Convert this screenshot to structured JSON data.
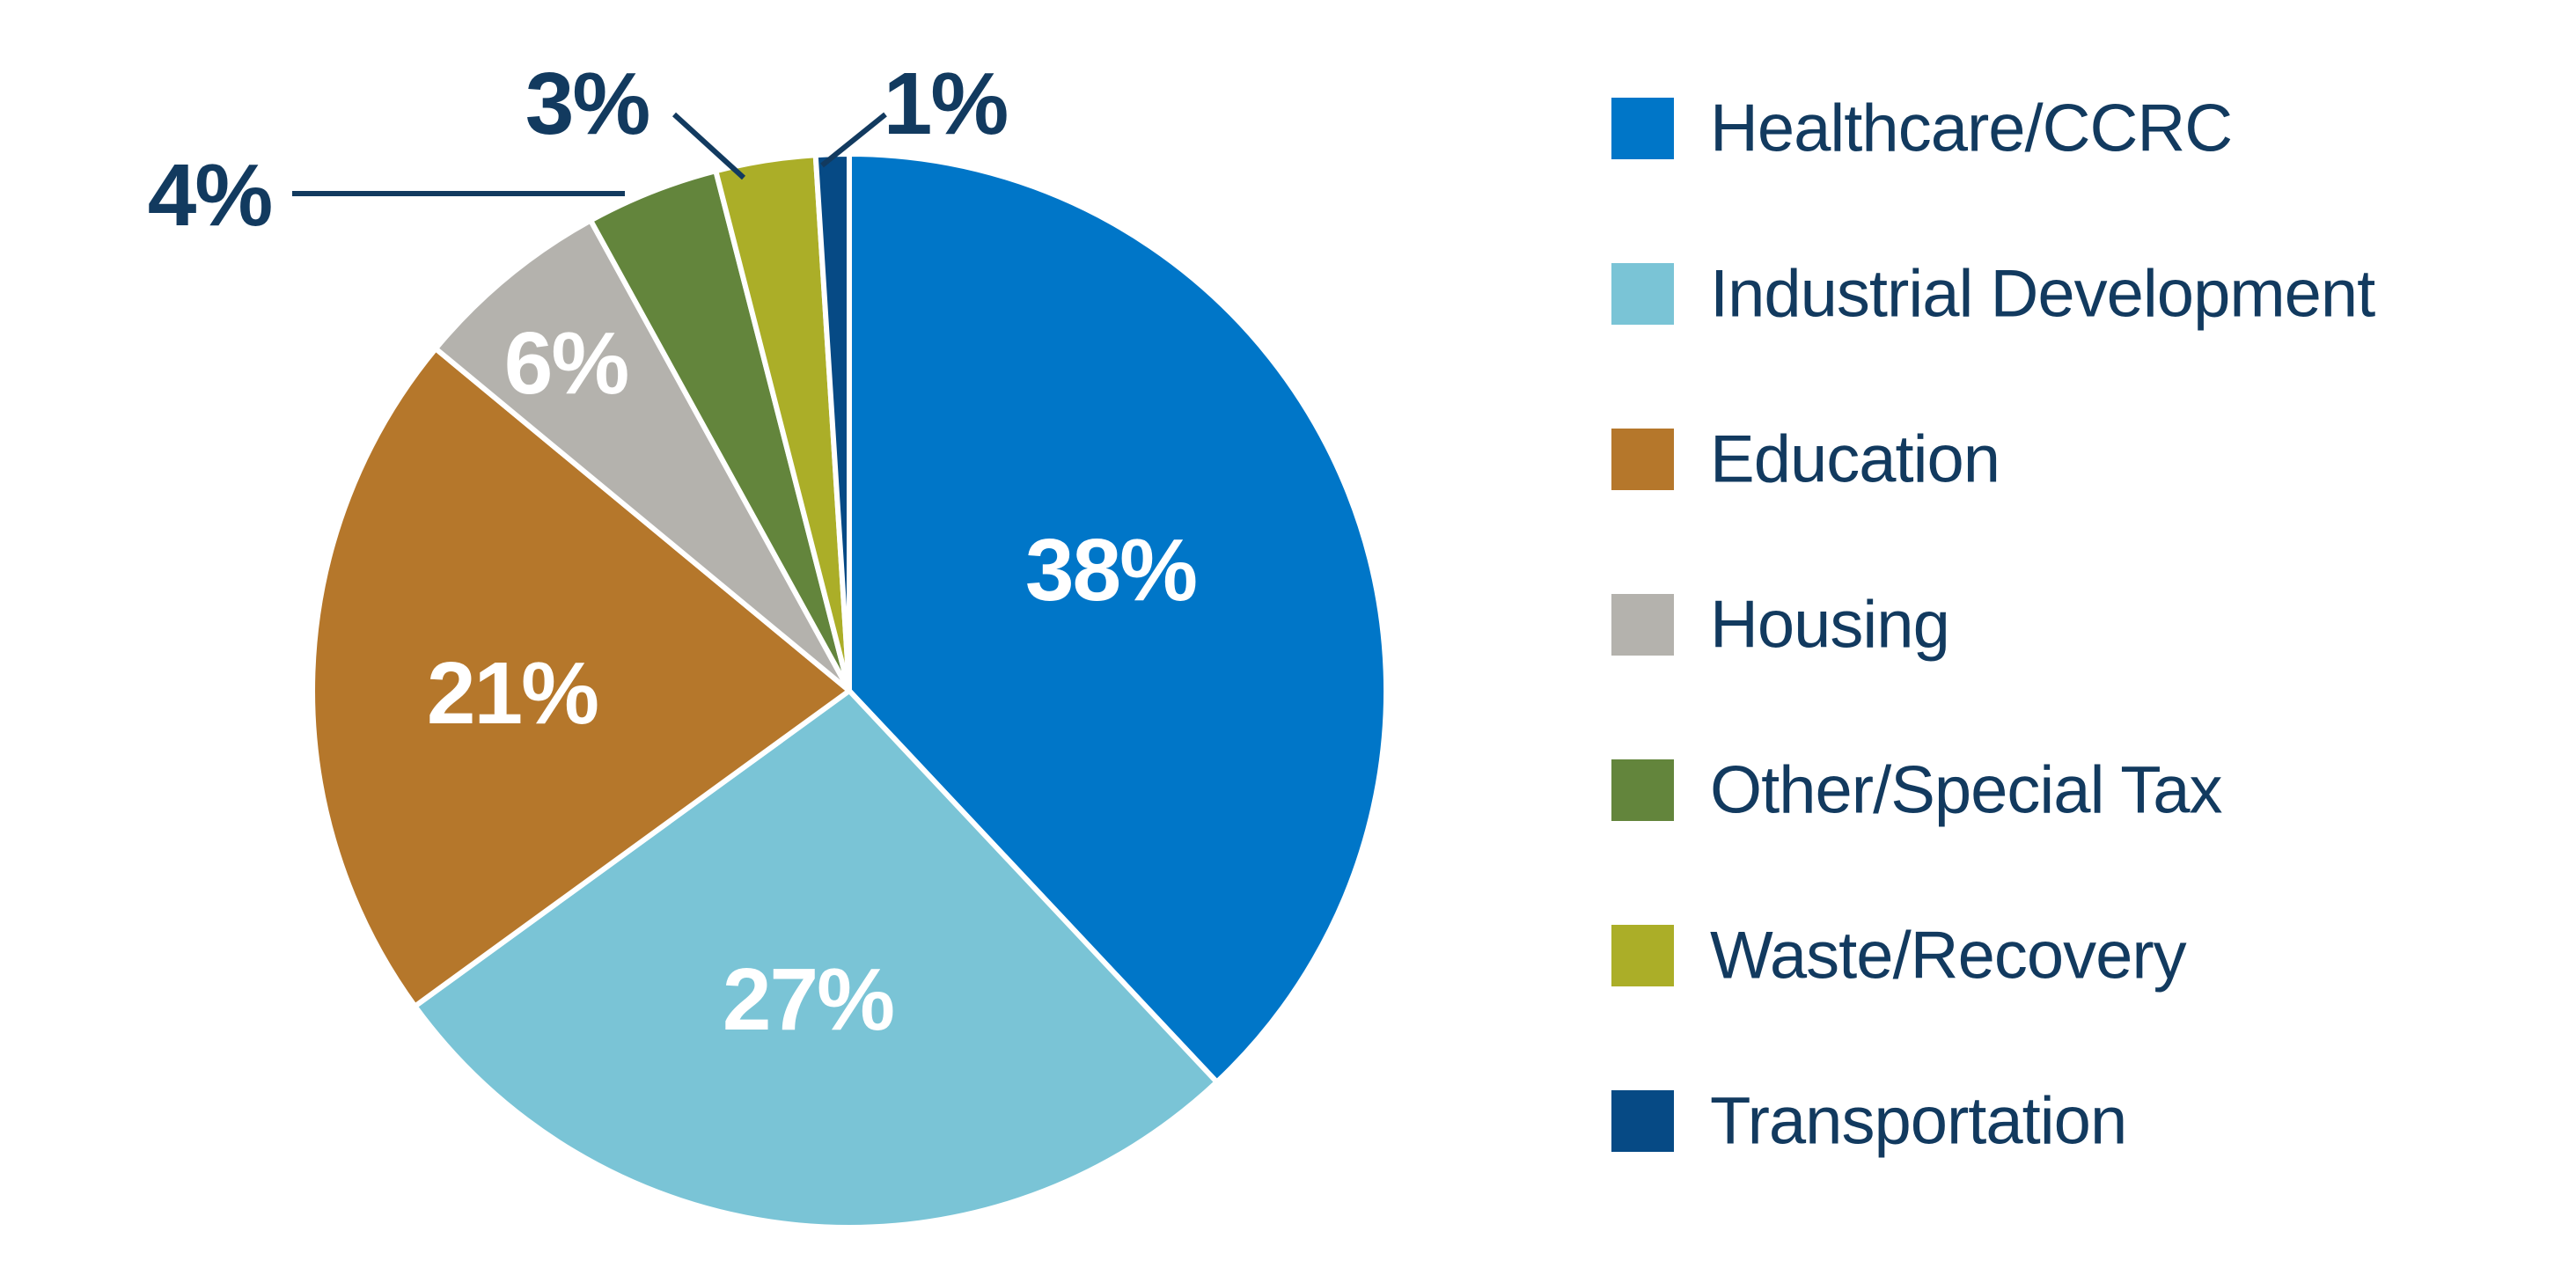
{
  "chart_data": {
    "type": "pie",
    "title": "",
    "start_angle_deg": 0,
    "direction": "clockwise",
    "grid": false,
    "legend_position": "right",
    "slices": [
      {
        "label": "Healthcare/CCRC",
        "value": 38,
        "pct_label": "38%",
        "color": "#0076c8",
        "label_placement": "inside"
      },
      {
        "label": "Industrial Development",
        "value": 27,
        "pct_label": "27%",
        "color": "#7ac4d6",
        "label_placement": "inside"
      },
      {
        "label": "Education",
        "value": 21,
        "pct_label": "21%",
        "color": "#b5772b",
        "label_placement": "inside"
      },
      {
        "label": "Housing",
        "value": 6,
        "pct_label": "6%",
        "color": "#b4b2ad",
        "label_placement": "inside"
      },
      {
        "label": "Other/Special Tax",
        "value": 4,
        "pct_label": "4%",
        "color": "#63853c",
        "label_placement": "outside"
      },
      {
        "label": "Waste/Recovery",
        "value": 3,
        "pct_label": "3%",
        "color": "#abae28",
        "label_placement": "outside"
      },
      {
        "label": "Transportation",
        "value": 1,
        "pct_label": "1%",
        "color": "#064a85",
        "label_placement": "outside"
      }
    ]
  },
  "styles": {
    "background": "#ffffff",
    "inside_label_color": "#ffffff",
    "outside_label_color": "#123a5f",
    "leader_line_color": "#123a5f",
    "slice_separator_color": "#ffffff"
  }
}
